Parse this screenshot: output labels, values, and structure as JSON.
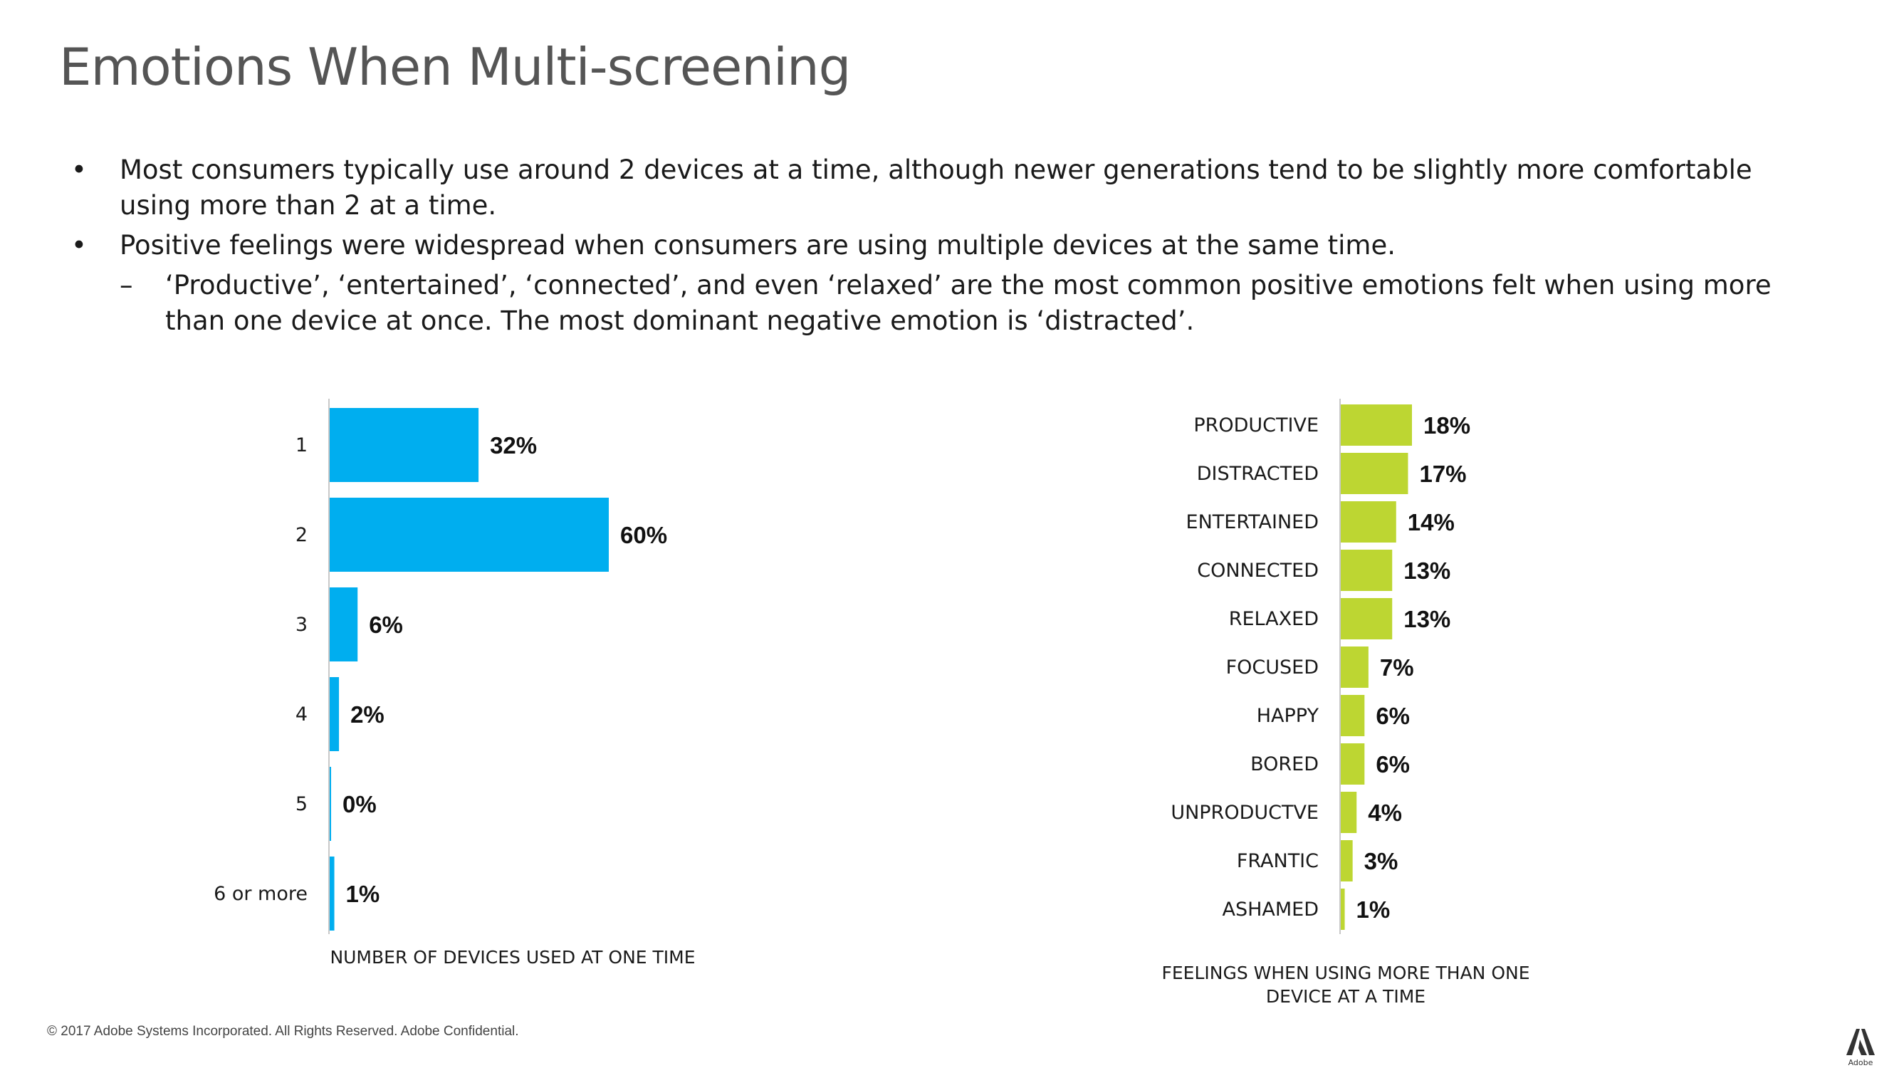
{
  "slide": {
    "title": "Emotions When Multi-screening",
    "bullets": [
      "Most consumers typically use around 2 devices at a time, although newer generations tend to be slightly more comfortable using more than 2 at a time.",
      "Positive feelings were widespread when consumers are using multiple devices at the same time."
    ],
    "sub_bullet": "‘Productive’, ‘entertained’, ‘connected’, and even ‘relaxed’ are the most common positive emotions felt when using more than one device at once. The most dominant negative emotion is ‘distracted’.",
    "bullet_mark": "•",
    "sub_mark": "–",
    "footer": "© 2017 Adobe Systems Incorporated.  All Rights Reserved.  Adobe Confidential.",
    "logo_text": "Adobe"
  },
  "chart_data": [
    {
      "type": "bar",
      "orientation": "horizontal",
      "categories": [
        "1",
        "2",
        "3",
        "4",
        "5",
        "6 or more"
      ],
      "values": [
        32,
        60,
        6,
        2,
        0,
        1
      ],
      "value_labels": [
        "32%",
        "60%",
        "6%",
        "2%",
        "0%",
        "1%"
      ],
      "unit": "%",
      "xlabel": "NUMBER OF DEVICES USED AT ONE TIME",
      "xlim": [
        0,
        60
      ],
      "color": "#00AEEF",
      "grid": false
    },
    {
      "type": "bar",
      "orientation": "horizontal",
      "categories": [
        "PRODUCTIVE",
        "DISTRACTED",
        "ENTERTAINED",
        "CONNECTED",
        "RELAXED",
        "FOCUSED",
        "HAPPY",
        "BORED",
        "UNPRODUCTVE",
        "FRANTIC",
        "ASHAMED"
      ],
      "values": [
        18,
        17,
        14,
        13,
        13,
        7,
        6,
        6,
        4,
        3,
        1
      ],
      "value_labels": [
        "18%",
        "17%",
        "14%",
        "13%",
        "13%",
        "7%",
        "6%",
        "6%",
        "4%",
        "3%",
        "1%"
      ],
      "unit": "%",
      "xlabel_lines": [
        "FEELINGS WHEN USING MORE THAN ONE",
        "DEVICE AT A TIME"
      ],
      "xlim": [
        0,
        18
      ],
      "color": "#BDD632",
      "grid": false
    }
  ]
}
